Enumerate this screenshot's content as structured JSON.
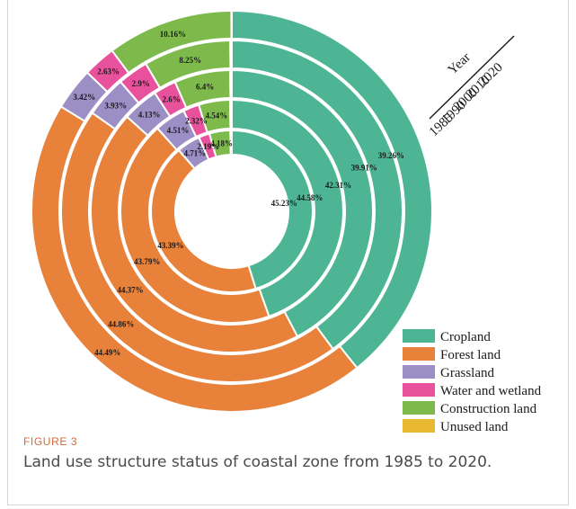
{
  "chart_data": {
    "type": "donut",
    "title": "",
    "years": [
      "1985",
      "1990",
      "2000",
      "2010",
      "2020"
    ],
    "year_axis_label": "Year",
    "categories": [
      "Cropland",
      "Forest land",
      "Grassland",
      "Water and wetland",
      "Construction land",
      "Unused land"
    ],
    "colors": {
      "Cropland": "#4db594",
      "Forest land": "#e8813a",
      "Grassland": "#9b8fc5",
      "Water and wetland": "#e8529c",
      "Construction land": "#7db94b",
      "Unused land": "#e8b830"
    },
    "series": [
      {
        "year": "1985",
        "values": [
          45.23,
          43.39,
          4.71,
          2.19,
          4.18,
          0.3
        ],
        "labels": [
          "45.23%",
          "43.39%",
          "4.71%",
          "2.19%",
          "4.18%",
          ""
        ]
      },
      {
        "year": "1990",
        "values": [
          44.58,
          43.79,
          4.51,
          2.32,
          4.54,
          0.26
        ],
        "labels": [
          "44.58%",
          "43.79%",
          "4.51%",
          "2.32%",
          "4.54%",
          ""
        ]
      },
      {
        "year": "2000",
        "values": [
          42.31,
          44.37,
          4.13,
          2.6,
          6.4,
          0.19
        ],
        "labels": [
          "42.31%",
          "44.37%",
          "4.13%",
          "2.6%",
          "6.4%",
          ""
        ]
      },
      {
        "year": "2010",
        "values": [
          39.91,
          44.86,
          3.93,
          2.9,
          8.25,
          0.15
        ],
        "labels": [
          "39.91%",
          "44.86%",
          "3.93%",
          "2.9%",
          "8.25%",
          ""
        ]
      },
      {
        "year": "2020",
        "values": [
          39.26,
          44.49,
          3.42,
          2.63,
          10.16,
          0.04
        ],
        "labels": [
          "39.26%",
          "44.49%",
          "3.42%",
          "2.63%",
          "10.16%",
          ""
        ]
      }
    ],
    "legend_position": "bottom-right"
  },
  "caption": {
    "figure_label": "FIGURE 3",
    "text": "Land use structure status of coastal zone from 1985 to 2020."
  }
}
